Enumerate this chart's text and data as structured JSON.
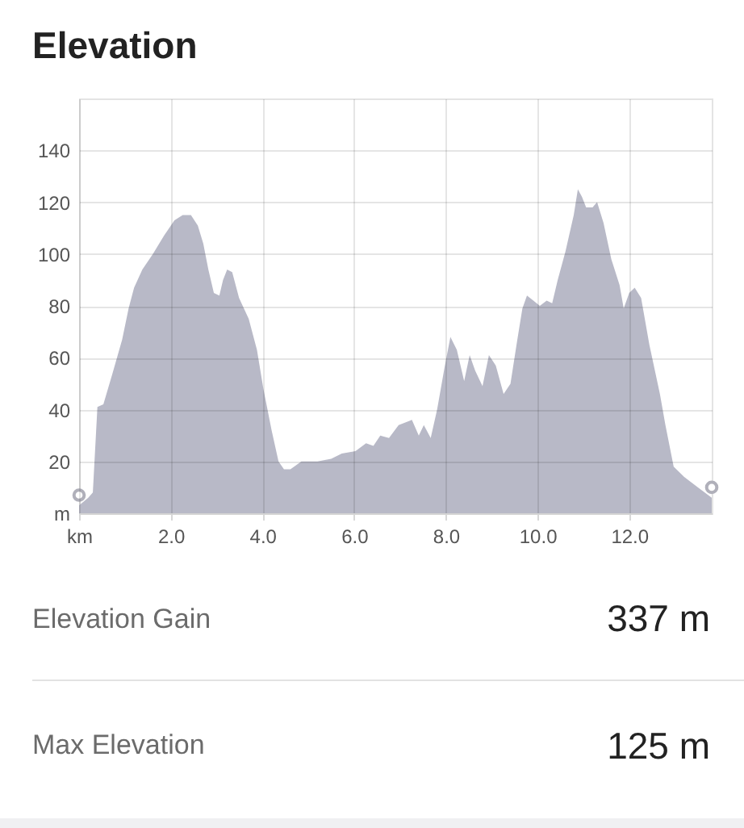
{
  "chart_data": [
    {
      "type": "area",
      "title": "Elevation",
      "xlim": [
        0,
        13.8
      ],
      "xticks": [
        {
          "value": 0,
          "label": "km"
        },
        {
          "value": 2,
          "label": "2.0"
        },
        {
          "value": 4,
          "label": "4.0"
        },
        {
          "value": 6,
          "label": "6.0"
        },
        {
          "value": 8,
          "label": "8.0"
        },
        {
          "value": 10,
          "label": "10.0"
        },
        {
          "value": 12,
          "label": "12.0"
        }
      ],
      "ylim": [
        0,
        160
      ],
      "yticks": [
        {
          "value": 0,
          "label": "m"
        },
        20,
        40,
        60,
        80,
        100,
        120,
        140
      ],
      "grid": true,
      "series": [
        {
          "color": "#b8b9c7",
          "x": [
            0,
            0.2,
            0.3,
            0.4,
            0.53,
            0.73,
            0.94,
            1.08,
            1.2,
            1.38,
            1.61,
            1.85,
            2.08,
            2.26,
            2.44,
            2.59,
            2.71,
            2.82,
            2.94,
            3.06,
            3.14,
            3.23,
            3.34,
            3.49,
            3.7,
            3.88,
            4.02,
            4.2,
            4.35,
            4.47,
            4.61,
            4.85,
            5.2,
            5.5,
            5.73,
            6.03,
            6.26,
            6.42,
            6.57,
            6.76,
            6.97,
            7.26,
            7.41,
            7.52,
            7.67,
            7.81,
            7.97,
            8.1,
            8.24,
            8.4,
            8.52,
            8.64,
            8.8,
            8.94,
            9.09,
            9.26,
            9.41,
            9.56,
            9.67,
            9.77,
            9.91,
            10.05,
            10.2,
            10.32,
            10.44,
            10.61,
            10.79,
            10.88,
            10.97,
            11.06,
            11.2,
            11.3,
            11.44,
            11.61,
            11.79,
            11.88,
            12.0,
            12.12,
            12.26,
            12.44,
            12.67,
            12.79,
            12.97,
            13.2,
            13.5,
            13.8
          ],
          "values": [
            3,
            6,
            8,
            41,
            42,
            54,
            67,
            79,
            87,
            94,
            100,
            107,
            113,
            115,
            115,
            111,
            104,
            94,
            85,
            84,
            90,
            94,
            93,
            83,
            75,
            63,
            48,
            32,
            20,
            17,
            17,
            20,
            20,
            21,
            23,
            24,
            27,
            26,
            30,
            29,
            34,
            36,
            30,
            34,
            29,
            40,
            56,
            68,
            63,
            51,
            61,
            55,
            49,
            61,
            57,
            46,
            50,
            67,
            79,
            84,
            82,
            80,
            82,
            81,
            90,
            101,
            115,
            125,
            122,
            118,
            118,
            120,
            112,
            98,
            88,
            79,
            85,
            87,
            83,
            65,
            46,
            34,
            18,
            14,
            10,
            6
          ]
        },
        {
          "type": "scatter",
          "color": "#b0b0ba",
          "x": [
            0,
            13.8
          ],
          "values": [
            7,
            10
          ]
        }
      ]
    },
    {
      "type": "other",
      "annotations": [
        "Elevation Gain",
        "337 m",
        "Max Elevation",
        "125 m"
      ]
    }
  ]
}
